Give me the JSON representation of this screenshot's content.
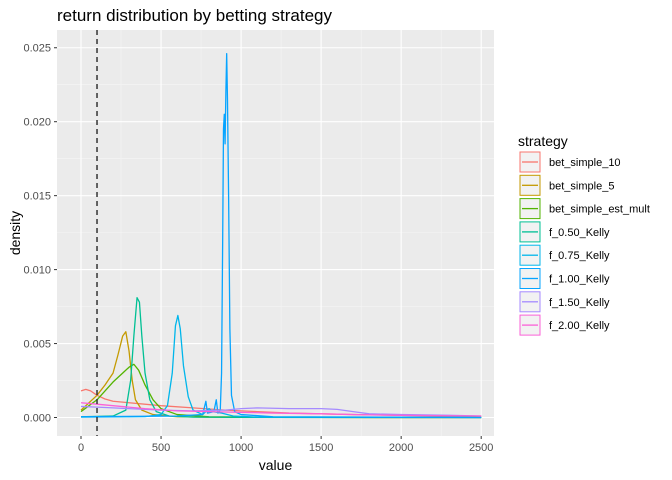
{
  "chart_data": {
    "type": "line",
    "title": "return distribution by betting strategy",
    "xlabel": "value",
    "ylabel": "density",
    "xlim": [
      -150,
      2580
    ],
    "ylim": [
      -0.00125,
      0.0262
    ],
    "x_ticks": [
      0,
      500,
      1000,
      1500,
      2000,
      2500
    ],
    "x_tick_labels": [
      "0",
      "500",
      "1000",
      "1500",
      "2000",
      "2500"
    ],
    "y_ticks": [
      0,
      0.005,
      0.01,
      0.015,
      0.02,
      0.025
    ],
    "y_tick_labels": [
      "0.000",
      "0.005",
      "0.010",
      "0.015",
      "0.020",
      "0.025"
    ],
    "grid": true,
    "vline": {
      "x": 100,
      "style": "dashed",
      "color": "#333333"
    },
    "legend": {
      "title": "strategy",
      "position": "right"
    },
    "series": [
      {
        "name": "bet_simple_10",
        "color": "#F8766D",
        "points": [
          [
            0,
            0.0018
          ],
          [
            30,
            0.0019
          ],
          [
            60,
            0.0018
          ],
          [
            100,
            0.0015
          ],
          [
            150,
            0.00125
          ],
          [
            200,
            0.0011
          ],
          [
            300,
            0.001
          ],
          [
            500,
            0.0008
          ],
          [
            700,
            0.00065
          ],
          [
            900,
            0.0005
          ],
          [
            1100,
            0.0004
          ],
          [
            1300,
            0.0003
          ],
          [
            1500,
            0.00025
          ],
          [
            1700,
            0.0002
          ],
          [
            2000,
            0.00015
          ],
          [
            2300,
            0.0001
          ],
          [
            2500,
            8e-05
          ]
        ]
      },
      {
        "name": "bet_simple_5",
        "color": "#C49A00",
        "points": [
          [
            0,
            0.0005
          ],
          [
            50,
            0.001
          ],
          [
            100,
            0.0015
          ],
          [
            150,
            0.0022
          ],
          [
            200,
            0.003
          ],
          [
            230,
            0.0042
          ],
          [
            260,
            0.0055
          ],
          [
            280,
            0.0058
          ],
          [
            300,
            0.0045
          ],
          [
            320,
            0.0025
          ],
          [
            340,
            0.0012
          ],
          [
            380,
            0.0005
          ],
          [
            450,
            0.0002
          ],
          [
            600,
            5e-05
          ],
          [
            800,
            2e-05
          ],
          [
            1000,
            1e-05
          ],
          [
            1500,
            1e-05
          ],
          [
            2500,
            0
          ]
        ]
      },
      {
        "name": "bet_simple_est_mult",
        "color": "#53B400",
        "points": [
          [
            0,
            0.0004
          ],
          [
            50,
            0.0008
          ],
          [
            100,
            0.0012
          ],
          [
            150,
            0.0018
          ],
          [
            200,
            0.0024
          ],
          [
            260,
            0.003
          ],
          [
            300,
            0.0034
          ],
          [
            330,
            0.0036
          ],
          [
            360,
            0.0032
          ],
          [
            400,
            0.0022
          ],
          [
            450,
            0.0012
          ],
          [
            500,
            0.0006
          ],
          [
            600,
            0.0002
          ],
          [
            800,
            5e-05
          ],
          [
            1200,
            1e-05
          ],
          [
            2500,
            0
          ]
        ]
      },
      {
        "name": "f_0.50_Kelly",
        "color": "#00C094",
        "points": [
          [
            0,
            5e-05
          ],
          [
            200,
            0.0001
          ],
          [
            280,
            0.0005
          ],
          [
            310,
            0.0025
          ],
          [
            330,
            0.0055
          ],
          [
            350,
            0.0081
          ],
          [
            365,
            0.0078
          ],
          [
            380,
            0.0055
          ],
          [
            400,
            0.003
          ],
          [
            430,
            0.0012
          ],
          [
            470,
            0.0004
          ],
          [
            550,
            0.0001
          ],
          [
            700,
            3e-05
          ],
          [
            1000,
            1e-05
          ],
          [
            2500,
            0
          ]
        ]
      },
      {
        "name": "f_0.75_Kelly",
        "color": "#00B6EB",
        "points": [
          [
            0,
            3e-05
          ],
          [
            400,
            6e-05
          ],
          [
            500,
            0.0002
          ],
          [
            540,
            0.0008
          ],
          [
            570,
            0.003
          ],
          [
            590,
            0.0062
          ],
          [
            605,
            0.0069
          ],
          [
            620,
            0.006
          ],
          [
            640,
            0.0035
          ],
          [
            670,
            0.0014
          ],
          [
            700,
            0.0005
          ],
          [
            760,
            0.0002
          ],
          [
            800,
            0.0006
          ],
          [
            820,
            0.0004
          ],
          [
            880,
            0.0003
          ],
          [
            950,
            0.0001
          ],
          [
            1100,
            3e-05
          ],
          [
            2500,
            0
          ]
        ]
      },
      {
        "name": "f_1.00_Kelly",
        "color": "#06A4FF",
        "points": [
          [
            0,
            5e-05
          ],
          [
            600,
            0.0001
          ],
          [
            760,
            0.0002
          ],
          [
            780,
            0.0011
          ],
          [
            790,
            0.0003
          ],
          [
            830,
            0.0004
          ],
          [
            845,
            0.0012
          ],
          [
            855,
            0.0003
          ],
          [
            870,
            0.0005
          ],
          [
            878,
            0.003
          ],
          [
            885,
            0.012
          ],
          [
            890,
            0.0195
          ],
          [
            895,
            0.0205
          ],
          [
            900,
            0.0185
          ],
          [
            905,
            0.022
          ],
          [
            910,
            0.0246
          ],
          [
            915,
            0.0215
          ],
          [
            922,
            0.015
          ],
          [
            930,
            0.006
          ],
          [
            940,
            0.0015
          ],
          [
            960,
            0.0004
          ],
          [
            1000,
            0.0002
          ],
          [
            1200,
            5e-05
          ],
          [
            2500,
            0
          ]
        ]
      },
      {
        "name": "f_1.50_Kelly",
        "color": "#A58AFF",
        "points": [
          [
            0,
            0.00075
          ],
          [
            100,
            0.0007
          ],
          [
            200,
            0.00065
          ],
          [
            300,
            0.0006
          ],
          [
            500,
            0.0005
          ],
          [
            700,
            0.00045
          ],
          [
            900,
            0.0005
          ],
          [
            1000,
            0.0006
          ],
          [
            1100,
            0.00065
          ],
          [
            1300,
            0.0006
          ],
          [
            1500,
            0.0006
          ],
          [
            1600,
            0.00055
          ],
          [
            1700,
            0.0004
          ],
          [
            1800,
            0.00025
          ],
          [
            2000,
            0.0002
          ],
          [
            2300,
            0.00015
          ],
          [
            2500,
            0.0001
          ]
        ]
      },
      {
        "name": "f_2.00_Kelly",
        "color": "#FB61D7",
        "points": [
          [
            0,
            0.001
          ],
          [
            100,
            0.0009
          ],
          [
            200,
            0.0008
          ],
          [
            400,
            0.0006
          ],
          [
            600,
            0.00045
          ],
          [
            800,
            0.0004
          ],
          [
            1000,
            0.00035
          ],
          [
            1200,
            0.0003
          ],
          [
            1500,
            0.00025
          ],
          [
            1800,
            0.00018
          ],
          [
            2000,
            0.00015
          ],
          [
            2300,
            0.00012
          ],
          [
            2500,
            0.0001
          ]
        ]
      }
    ]
  }
}
